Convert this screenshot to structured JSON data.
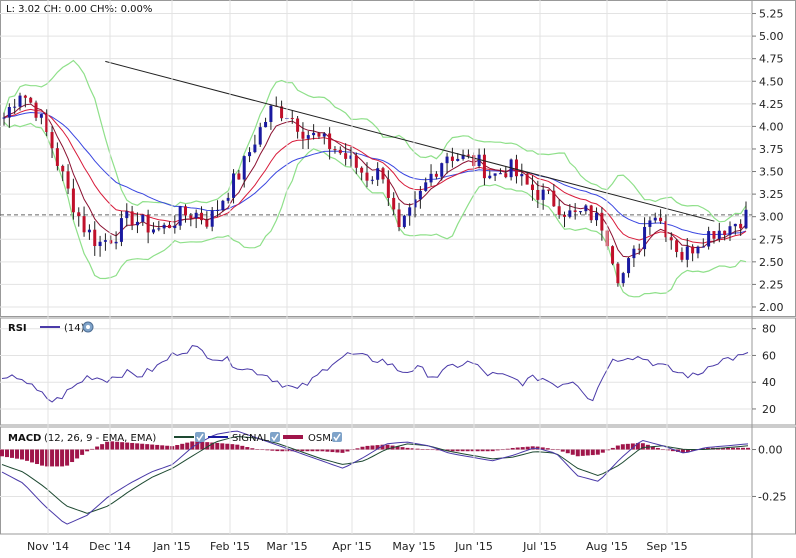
{
  "header": {
    "quote": "L: 3.02 CH: 0.00 CH%: 0.00%"
  },
  "rsi_panel": {
    "title": "RSI",
    "param": "(14)"
  },
  "macd_panel": {
    "title": "MACD",
    "params": "(12, 26, 9 - EMA, EMA)",
    "signal_label": "SIGNAL",
    "osma_label": "OSMA"
  },
  "chart_data": [
    {
      "type": "candlestick",
      "x_labels": [
        "Nov '14",
        "Dec '14",
        "Jan '15",
        "Feb '15",
        "Mar '15",
        "Apr '15",
        "May '15",
        "Jun '15",
        "Jul '15",
        "Aug '15",
        "Sep '15"
      ],
      "y_ticks": [
        "2.00",
        "2.25",
        "2.50",
        "2.75",
        "3.00",
        "3.25",
        "3.50",
        "3.75",
        "4.00",
        "4.25",
        "4.50",
        "4.75",
        "5.00",
        "5.25"
      ],
      "ylim": [
        1.9,
        5.4
      ],
      "last_price": 3.02,
      "close_series": [
        4.1,
        4.4,
        4.2,
        3.8,
        3.3,
        2.9,
        2.7,
        2.8,
        3.0,
        2.9,
        2.85,
        3.0,
        3.05,
        2.95,
        3.25,
        3.5,
        3.9,
        4.2,
        4.15,
        3.95,
        3.85,
        3.75,
        3.6,
        3.45,
        3.5,
        2.8,
        3.1,
        3.45,
        3.7,
        3.65,
        3.6,
        3.45,
        3.55,
        3.35,
        3.25,
        3.15,
        3.0,
        3.05,
        2.9,
        2.3,
        2.6,
        3.1,
        2.85,
        2.55,
        2.75,
        2.85,
        2.9,
        3.02
      ],
      "trendline": {
        "start": [
          0.14,
          4.72
        ],
        "end": [
          0.95,
          2.95
        ]
      },
      "series": [
        {
          "name": "Price",
          "color": "#1a1aa0"
        },
        {
          "name": "EMA short",
          "color": "#d81b3a"
        },
        {
          "name": "EMA long",
          "color": "#3a46e0"
        },
        {
          "name": "Bands",
          "color": "#8fe08a"
        }
      ]
    },
    {
      "type": "line",
      "name": "RSI",
      "y_ticks": [
        "20",
        "40",
        "60",
        "80"
      ],
      "ylim": [
        8,
        88
      ],
      "values": [
        40,
        45,
        33,
        25,
        35,
        45,
        42,
        47,
        45,
        52,
        62,
        66,
        60,
        56,
        50,
        47,
        40,
        34,
        42,
        55,
        61,
        58,
        56,
        48,
        50,
        44,
        52,
        55,
        46,
        44,
        40,
        44,
        38,
        42,
        26,
        55,
        60,
        58,
        52,
        47,
        44,
        55,
        58,
        60
      ],
      "color": "#4a3aa8"
    },
    {
      "type": "line",
      "name": "MACD",
      "y_ticks": [
        "0.00",
        "-0.25"
      ],
      "ylim": [
        -0.45,
        0.12
      ],
      "macd": [
        -0.12,
        -0.18,
        -0.3,
        -0.4,
        -0.35,
        -0.25,
        -0.18,
        -0.12,
        -0.08,
        0.02,
        0.08,
        0.1,
        0.06,
        0.02,
        -0.02,
        -0.06,
        -0.1,
        -0.04,
        0.03,
        0.04,
        0.02,
        -0.02,
        -0.04,
        -0.06,
        -0.03,
        0.01,
        -0.02,
        -0.14,
        -0.17,
        -0.05,
        0.05,
        0.02,
        -0.02,
        0.01,
        0.02,
        0.03
      ],
      "signal": [
        -0.08,
        -0.12,
        -0.2,
        -0.3,
        -0.34,
        -0.3,
        -0.22,
        -0.15,
        -0.1,
        -0.03,
        0.04,
        0.07,
        0.06,
        0.03,
        -0.01,
        -0.05,
        -0.08,
        -0.06,
        0.0,
        0.03,
        0.02,
        -0.01,
        -0.03,
        -0.05,
        -0.04,
        -0.01,
        -0.02,
        -0.1,
        -0.14,
        -0.08,
        0.01,
        0.02,
        0.0,
        0.0,
        0.01,
        0.02
      ],
      "osma_color": "#a0154a"
    }
  ],
  "ui": {
    "icons": [
      "settings-icon",
      "settings-icon",
      "checkbox-icon",
      "checkbox-icon",
      "checkbox-icon"
    ]
  }
}
